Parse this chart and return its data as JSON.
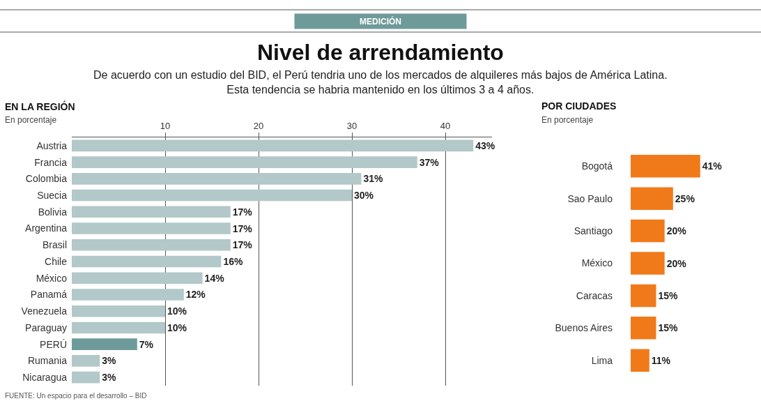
{
  "chart_data": [
    {
      "type": "bar",
      "orientation": "horizontal",
      "title": "EN LA REGIÓN",
      "subtitle": "En porcentaje",
      "categories": [
        "Austria",
        "Francia",
        "Colombia",
        "Suecia",
        "Bolivia",
        "Argentina",
        "Brasil",
        "Chile",
        "México",
        "Panamá",
        "Venezuela",
        "Paraguay",
        "PERÚ",
        "Rumania",
        "Nicaragua"
      ],
      "values": [
        43,
        37,
        31,
        30,
        17,
        17,
        17,
        16,
        14,
        12,
        10,
        10,
        7,
        3,
        3
      ],
      "value_labels": [
        "43%",
        "37%",
        "31%",
        "30%",
        "17%",
        "17%",
        "17%",
        "16%",
        "14%",
        "12%",
        "10%",
        "10%",
        "7%",
        "3%",
        "3%"
      ],
      "colors": [
        "#b3c8c8",
        "#b3c8c8",
        "#b3c8c8",
        "#b3c8c8",
        "#b3c8c8",
        "#b3c8c8",
        "#b3c8c8",
        "#b3c8c8",
        "#b3c8c8",
        "#b3c8c8",
        "#b3c8c8",
        "#b3c8c8",
        "#6f9a9a",
        "#b3c8c8",
        "#b3c8c8"
      ],
      "xlim": [
        0,
        45
      ],
      "xticks": [
        10,
        20,
        30,
        40
      ],
      "grid": "x",
      "annotations": [
        "MEDICIÓN",
        "Nivel de arrendamiento",
        "De acuerdo con un estudio del BID, el Perú tendria uno de los mercados de alquileres más bajos de América Latina.\nEsta tendencia se habria mantenido en los últimos 3 a 4 años.",
        "FUENTE: Un espacio para el desarrollo – BID"
      ]
    },
    {
      "type": "bar",
      "orientation": "horizontal",
      "title": "POR CIUDADES",
      "subtitle": "En porcentaje",
      "categories": [
        "Bogotá",
        "Sao Paulo",
        "Santiago",
        "México",
        "Caracas",
        "Buenos Aires",
        "Lima"
      ],
      "values": [
        41,
        25,
        20,
        20,
        15,
        15,
        11
      ],
      "value_labels": [
        "41%",
        "25%",
        "20%",
        "20%",
        "15%",
        "15%",
        "11%"
      ],
      "color": "#f07a1a",
      "tick_labels": "y"
    }
  ]
}
